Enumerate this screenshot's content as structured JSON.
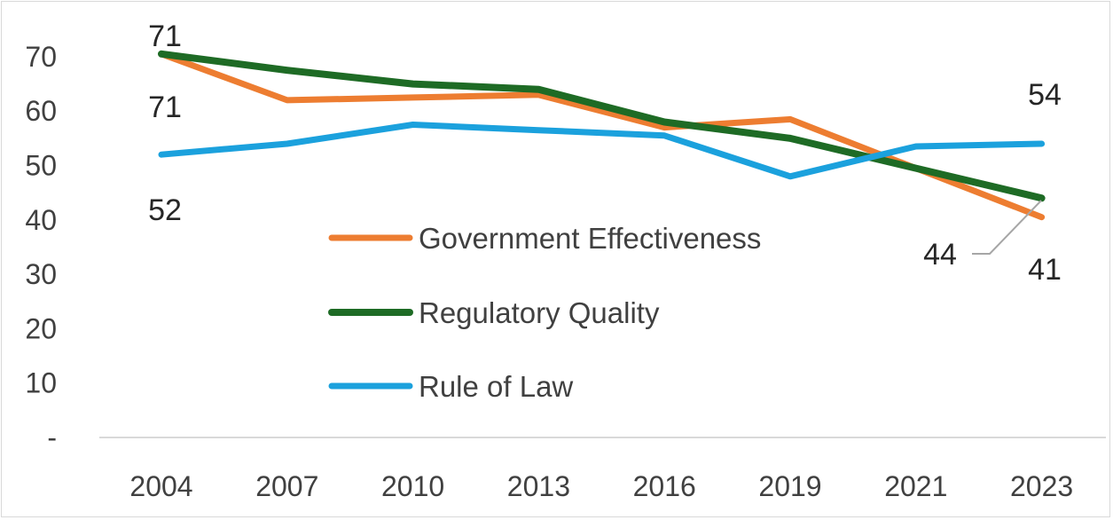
{
  "chart_data": {
    "type": "line",
    "title": "",
    "xlabel": "",
    "ylabel": "",
    "categories": [
      "2004",
      "2007",
      "2010",
      "2013",
      "2016",
      "2019",
      "2021",
      "2023"
    ],
    "ylim": [
      0,
      70
    ],
    "yticks": [
      {
        "value": 0,
        "label": "-"
      },
      {
        "value": 10,
        "label": "10"
      },
      {
        "value": 20,
        "label": "20"
      },
      {
        "value": 30,
        "label": "30"
      },
      {
        "value": 40,
        "label": "40"
      },
      {
        "value": 50,
        "label": "50"
      },
      {
        "value": 60,
        "label": "60"
      },
      {
        "value": 70,
        "label": "70"
      }
    ],
    "grid": false,
    "legend_position": "center",
    "series": [
      {
        "name": "Government Effectiveness",
        "color": "#ed7d31",
        "values": [
          70.5,
          62,
          62.5,
          63,
          57,
          58.5,
          49.5,
          40.5
        ]
      },
      {
        "name": "Regulatory Quality",
        "color": "#1e6b25",
        "values": [
          70.5,
          67.5,
          65,
          64,
          58,
          55,
          49.5,
          44
        ]
      },
      {
        "name": "Rule of Law",
        "color": "#1ba1dd",
        "values": [
          52,
          54,
          57.5,
          56.5,
          55.5,
          48,
          53.5,
          54
        ]
      }
    ],
    "data_labels": [
      {
        "series": 1,
        "index": 0,
        "text": "71"
      },
      {
        "series": 0,
        "index": 0,
        "text": "71"
      },
      {
        "series": 2,
        "index": 0,
        "text": "52"
      },
      {
        "series": 2,
        "index": 7,
        "text": "54"
      },
      {
        "series": 1,
        "index": 7,
        "text": "44"
      },
      {
        "series": 0,
        "index": 7,
        "text": "41"
      }
    ]
  }
}
